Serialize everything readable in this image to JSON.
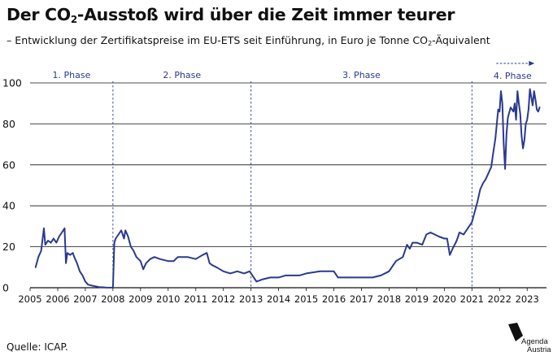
{
  "title_pre": "Der CO",
  "title_sub": "2",
  "title_post": "-Ausstoß wird über die Zeit immer teurer",
  "subtitle_pre": "– Entwicklung der Zertifikatspreise im EU-ETS seit Einführung, in Euro je Tonne CO",
  "subtitle_sub": "2",
  "subtitle_post": "-Äquivalent",
  "source": "Quelle: ICAP.",
  "logo": {
    "line1": "Agenda",
    "line2": "Austria",
    "icon": "agenda-austria-logo-mark"
  },
  "colors": {
    "line": "#2b3990",
    "grid": "#111111",
    "text": "#111111"
  },
  "chart_data": {
    "type": "line",
    "title": "Der CO2-Ausstoß wird über die Zeit immer teurer",
    "subtitle": "Entwicklung der Zertifikatspreise im EU-ETS seit Einführung, in Euro je Tonne CO2-Äquivalent",
    "xlabel": "",
    "ylabel": "",
    "xlim": [
      2005,
      2023.7
    ],
    "ylim": [
      0,
      100
    ],
    "grid": true,
    "legend": "none",
    "x_ticks": [
      "2005",
      "2006",
      "2007",
      "2008",
      "2009",
      "2010",
      "2011",
      "2012",
      "2013",
      "2014",
      "2015",
      "2016",
      "2017",
      "2018",
      "2019",
      "2020",
      "2021",
      "2022",
      "2023"
    ],
    "y_ticks": [
      "0",
      "20",
      "40",
      "60",
      "80",
      "100"
    ],
    "phases": [
      {
        "label": "1. Phase",
        "start": 2005,
        "end": 2008
      },
      {
        "label": "2. Phase",
        "start": 2008,
        "end": 2013
      },
      {
        "label": "3. Phase",
        "start": 2013,
        "end": 2021
      },
      {
        "label": "4. Phase",
        "start": 2021,
        "end": null,
        "arrow": true
      }
    ],
    "series": [
      {
        "name": "",
        "color": "#2b3990",
        "points": [
          [
            2005.2,
            10
          ],
          [
            2005.3,
            15
          ],
          [
            2005.4,
            18
          ],
          [
            2005.5,
            29
          ],
          [
            2005.55,
            21
          ],
          [
            2005.65,
            23
          ],
          [
            2005.75,
            22
          ],
          [
            2005.85,
            24
          ],
          [
            2005.95,
            22
          ],
          [
            2006.05,
            25
          ],
          [
            2006.15,
            27
          ],
          [
            2006.25,
            29
          ],
          [
            2006.3,
            12
          ],
          [
            2006.35,
            17
          ],
          [
            2006.45,
            16
          ],
          [
            2006.55,
            17
          ],
          [
            2006.6,
            15
          ],
          [
            2006.7,
            12
          ],
          [
            2006.8,
            8
          ],
          [
            2006.9,
            6
          ],
          [
            2007.0,
            3
          ],
          [
            2007.1,
            1.5
          ],
          [
            2007.25,
            1
          ],
          [
            2007.5,
            0.3
          ],
          [
            2007.75,
            0.1
          ],
          [
            2008.0,
            0.03
          ],
          [
            2008.05,
            22
          ],
          [
            2008.1,
            24
          ],
          [
            2008.2,
            26
          ],
          [
            2008.3,
            28
          ],
          [
            2008.4,
            24
          ],
          [
            2008.45,
            28
          ],
          [
            2008.55,
            25
          ],
          [
            2008.65,
            20
          ],
          [
            2008.75,
            18
          ],
          [
            2008.85,
            15
          ],
          [
            2009.0,
            13
          ],
          [
            2009.1,
            9
          ],
          [
            2009.2,
            12
          ],
          [
            2009.35,
            14
          ],
          [
            2009.5,
            15
          ],
          [
            2009.7,
            14
          ],
          [
            2010.0,
            13
          ],
          [
            2010.2,
            13
          ],
          [
            2010.35,
            15
          ],
          [
            2010.5,
            15
          ],
          [
            2010.7,
            15
          ],
          [
            2011.0,
            14
          ],
          [
            2011.25,
            16
          ],
          [
            2011.4,
            17
          ],
          [
            2011.5,
            12
          ],
          [
            2011.6,
            11
          ],
          [
            2011.75,
            10
          ],
          [
            2012.0,
            8
          ],
          [
            2012.25,
            7
          ],
          [
            2012.5,
            8
          ],
          [
            2012.75,
            7
          ],
          [
            2012.95,
            8
          ],
          [
            2013.1,
            5
          ],
          [
            2013.2,
            3
          ],
          [
            2013.4,
            4
          ],
          [
            2013.7,
            5
          ],
          [
            2014.0,
            5
          ],
          [
            2014.25,
            6
          ],
          [
            2014.5,
            6
          ],
          [
            2014.75,
            6
          ],
          [
            2015.0,
            7
          ],
          [
            2015.5,
            8
          ],
          [
            2015.8,
            8
          ],
          [
            2016.0,
            8
          ],
          [
            2016.15,
            5
          ],
          [
            2016.3,
            5
          ],
          [
            2016.5,
            5
          ],
          [
            2016.8,
            5
          ],
          [
            2017.0,
            5
          ],
          [
            2017.4,
            5
          ],
          [
            2017.7,
            6
          ],
          [
            2018.0,
            8
          ],
          [
            2018.25,
            13
          ],
          [
            2018.5,
            15
          ],
          [
            2018.65,
            21
          ],
          [
            2018.75,
            19
          ],
          [
            2018.85,
            22
          ],
          [
            2019.0,
            22
          ],
          [
            2019.2,
            21
          ],
          [
            2019.35,
            26
          ],
          [
            2019.5,
            27
          ],
          [
            2019.65,
            26
          ],
          [
            2019.8,
            25
          ],
          [
            2020.0,
            24
          ],
          [
            2020.1,
            24
          ],
          [
            2020.2,
            16
          ],
          [
            2020.3,
            19
          ],
          [
            2020.45,
            23
          ],
          [
            2020.55,
            27
          ],
          [
            2020.7,
            26
          ],
          [
            2020.85,
            29
          ],
          [
            2021.0,
            32
          ],
          [
            2021.1,
            37
          ],
          [
            2021.2,
            42
          ],
          [
            2021.3,
            48
          ],
          [
            2021.4,
            51
          ],
          [
            2021.5,
            53
          ],
          [
            2021.6,
            56
          ],
          [
            2021.7,
            59
          ],
          [
            2021.75,
            64
          ],
          [
            2021.85,
            73
          ],
          [
            2021.9,
            80
          ],
          [
            2021.95,
            87
          ],
          [
            2022.0,
            86
          ],
          [
            2022.05,
            96
          ],
          [
            2022.1,
            90
          ],
          [
            2022.15,
            70
          ],
          [
            2022.2,
            58
          ],
          [
            2022.25,
            75
          ],
          [
            2022.3,
            83
          ],
          [
            2022.4,
            88
          ],
          [
            2022.5,
            86
          ],
          [
            2022.55,
            90
          ],
          [
            2022.6,
            82
          ],
          [
            2022.65,
            96
          ],
          [
            2022.7,
            90
          ],
          [
            2022.75,
            85
          ],
          [
            2022.8,
            74
          ],
          [
            2022.85,
            68
          ],
          [
            2022.9,
            72
          ],
          [
            2022.95,
            80
          ],
          [
            2023.0,
            82
          ],
          [
            2023.05,
            87
          ],
          [
            2023.1,
            97
          ],
          [
            2023.15,
            93
          ],
          [
            2023.2,
            89
          ],
          [
            2023.25,
            96
          ],
          [
            2023.3,
            92
          ],
          [
            2023.35,
            87
          ],
          [
            2023.4,
            86
          ],
          [
            2023.45,
            88
          ]
        ]
      }
    ]
  }
}
